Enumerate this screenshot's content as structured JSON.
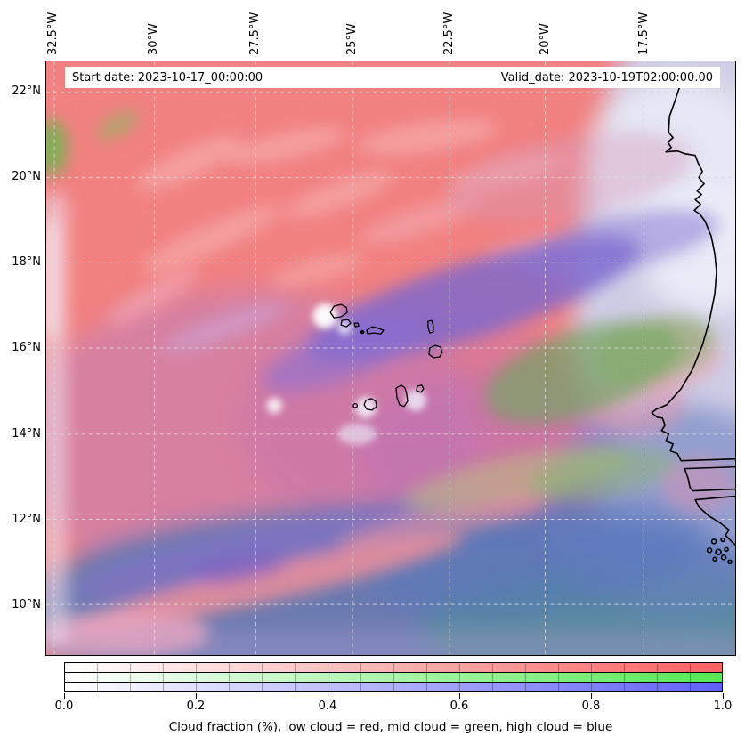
{
  "figure": {
    "title_bar": {
      "start_date": "Start date: 2023-10-17_00:00:00",
      "valid_date": "Valid_date: 2023-10-19T02:00:00.00"
    }
  },
  "axes": {
    "lon_ticks": [
      "32.5°W",
      "30°W",
      "27.5°W",
      "25°W",
      "22.5°W",
      "20°W",
      "17.5°W"
    ],
    "lat_ticks": [
      "22°N",
      "20°N",
      "18°N",
      "16°N",
      "14°N",
      "12°N",
      "10°N"
    ]
  },
  "colorbar": {
    "tick_labels": [
      "0.0",
      "0.2",
      "0.4",
      "0.6",
      "0.8",
      "1.0"
    ],
    "range": [
      0.0,
      1.0
    ],
    "rows": [
      {
        "name": "low-cloud",
        "label": "low cloud = red",
        "color": "#fa6363"
      },
      {
        "name": "mid-cloud",
        "label": "mid cloud = green",
        "color": "#55e955"
      },
      {
        "name": "high-cloud",
        "label": "high cloud = blue",
        "color": "#6060f7"
      }
    ],
    "caption": "Cloud fraction (%), low cloud = red, mid cloud = green, high cloud = blue"
  },
  "chart_data": {
    "type": "heatmap",
    "title": "",
    "annotations": [
      "Start date: 2023-10-17_00:00:00",
      "Valid_date: 2023-10-19T02:00:00.00"
    ],
    "x_axis": {
      "position": "top",
      "tick_labels": [
        "32.5°W",
        "30°W",
        "27.5°W",
        "25°W",
        "22.5°W",
        "20°W",
        "17.5°W"
      ],
      "range_deg_west": [
        32.6,
        15.2
      ]
    },
    "y_axis": {
      "tick_labels": [
        "22°N",
        "20°N",
        "18°N",
        "16°N",
        "14°N",
        "12°N",
        "10°N"
      ],
      "range_deg_north": [
        8.8,
        22.7
      ]
    },
    "grid": true,
    "colorbar": {
      "range": [
        0.0,
        1.0
      ],
      "tick_labels": [
        "0.0",
        "0.2",
        "0.4",
        "0.6",
        "0.8",
        "1.0"
      ],
      "channels": [
        {
          "channel": "red",
          "meaning": "low cloud fraction"
        },
        {
          "channel": "green",
          "meaning": "mid cloud fraction"
        },
        {
          "channel": "blue",
          "meaning": "high cloud fraction"
        }
      ]
    },
    "caption": "Cloud fraction (%), low cloud = red, mid cloud = green, high cloud = blue",
    "geography": [
      "Cape Verde islands outlined in black near 16°N 24°W",
      "West African coastline (Western Sahara to Guinea-Bissau) along right edge, incl. Cap Blanc, Cap Vert/Dakar, Gambia and Casamance rivers, Bijagos islands"
    ],
    "field_description": [
      "Extensive low cloud (salmon red) over northwest and west-central ocean",
      "Pale lavender/white high-thin-cloud region along coast 19-22N",
      "Dark violet high-cloud band slanting NE across center near 25-21W, 16-18N",
      "Green/olive mid-cloud mixture east and southeast of the islands toward the coast 14-16N",
      "Magenta low+high mixture over southwest quadrant with salmon and violet diagonal streaks",
      "Blue/teal high+mid cloud across the southern quarter below 12N",
      "Small bright white cloud patches around the islands",
      "Green patch at far west edge near 21N"
    ]
  }
}
